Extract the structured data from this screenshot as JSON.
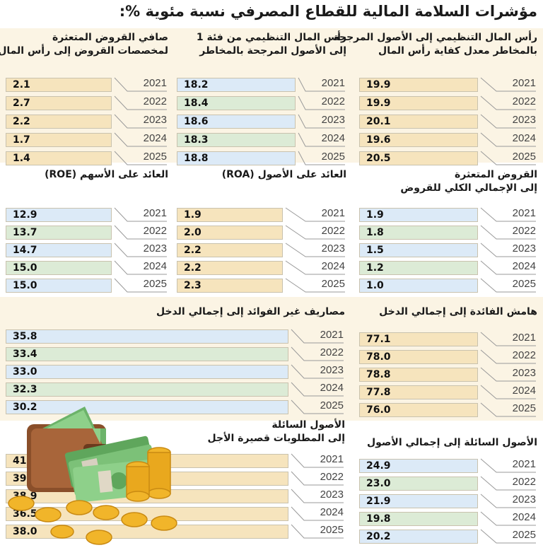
{
  "title": "مؤشرات السلامة المالية للقطاع المصرفي نسبة مئوية %:",
  "colors": {
    "band": "#fbf4e4",
    "blue": "#dceaf7",
    "green": "#dcebd6",
    "beige": "#f6e4bd",
    "connector": "#9a9a9a"
  },
  "icons": [
    "wallet-icon",
    "banknotes-icon",
    "gold-coins-icon"
  ],
  "chart_data": [
    {
      "type": "bar",
      "title": "رأس المال التنظيمي إلى الأصول المرجحة بالمخاطر معدل كفاية رأس المال",
      "title_lines": [
        "رأس المال التنظيمي إلى الأصول المرجحة",
        "بالمخاطر معدل كفاية رأس المال"
      ],
      "categories": [
        "2021",
        "2022",
        "2023",
        "2024",
        "2025"
      ],
      "values": [
        19.9,
        19.9,
        20.1,
        19.6,
        20.5
      ],
      "labels": [
        "19.9",
        "19.9",
        "20.1",
        "19.6",
        "20.5"
      ],
      "colors": [
        "beige",
        "beige",
        "beige",
        "beige",
        "beige"
      ]
    },
    {
      "type": "bar",
      "title": "رأس المال التنظيمي من فئة 1 إلى الأصول المرجحة بالمخاطر",
      "title_lines": [
        "رأس المال التنظيمي من فئة 1",
        "إلى الأصول المرجحة بالمخاطر"
      ],
      "categories": [
        "2021",
        "2022",
        "2023",
        "2024",
        "2025"
      ],
      "values": [
        18.2,
        18.4,
        18.6,
        18.3,
        18.8
      ],
      "labels": [
        "18.2",
        "18.4",
        "18.6",
        "18.3",
        "18.8"
      ],
      "colors": [
        "blue",
        "green",
        "blue",
        "green",
        "blue"
      ]
    },
    {
      "type": "bar",
      "title": "صافي القروض المتعثرة لمخصصات القروض إلى رأس المال",
      "title_lines": [
        "صافي القروض المتعثرة",
        "لمخصصات القروض إلى رأس المال"
      ],
      "categories": [
        "2021",
        "2022",
        "2023",
        "2024",
        "2025"
      ],
      "values": [
        2.1,
        2.7,
        2.2,
        1.7,
        1.4
      ],
      "labels": [
        "2.1",
        "2.7",
        "2.2",
        "1.7",
        "1.4"
      ],
      "colors": [
        "beige",
        "beige",
        "beige",
        "beige",
        "beige"
      ]
    },
    {
      "type": "bar",
      "title": "القروض المتعثرة إلى الإجمالي الكلي للقروض",
      "title_lines": [
        "القروض المتعثرة",
        "إلى الإجمالي الكلي للقروض"
      ],
      "categories": [
        "2021",
        "2022",
        "2023",
        "2024",
        "2025"
      ],
      "values": [
        1.9,
        1.8,
        1.5,
        1.2,
        1.0
      ],
      "labels": [
        "1.9",
        "1.8",
        "1.5",
        "1.2",
        "1.0"
      ],
      "colors": [
        "blue",
        "green",
        "blue",
        "green",
        "blue"
      ]
    },
    {
      "type": "bar",
      "title": "العائد على الأصول (ROA)",
      "title_lines": [
        "العائد على الأصول (ROA)"
      ],
      "categories": [
        "2021",
        "2022",
        "2023",
        "2024",
        "2025"
      ],
      "values": [
        1.9,
        2.0,
        2.2,
        2.2,
        2.3
      ],
      "labels": [
        "1.9",
        "2.0",
        "2.2",
        "2.2",
        "2.3"
      ],
      "colors": [
        "beige",
        "beige",
        "beige",
        "beige",
        "beige"
      ]
    },
    {
      "type": "bar",
      "title": "العائد على الأسهم (ROE)",
      "title_lines": [
        "العائد على الأسهم (ROE)"
      ],
      "categories": [
        "2021",
        "2022",
        "2023",
        "2024",
        "2025"
      ],
      "values": [
        12.9,
        13.7,
        14.7,
        15.0,
        15.0
      ],
      "labels": [
        "12.9",
        "13.7",
        "14.7",
        "15.0",
        "15.0"
      ],
      "colors": [
        "blue",
        "green",
        "blue",
        "green",
        "blue"
      ]
    },
    {
      "type": "bar",
      "title": "هامش الفائدة إلى إجمالي الدخل",
      "title_lines": [
        "هامش الفائدة إلى إجمالي الدخل"
      ],
      "categories": [
        "2021",
        "2022",
        "2023",
        "2024",
        "2025"
      ],
      "values": [
        77.1,
        78.0,
        78.8,
        77.8,
        76.0
      ],
      "labels": [
        "77.1",
        "78.0",
        "78.8",
        "77.8",
        "76.0"
      ],
      "colors": [
        "beige",
        "beige",
        "beige",
        "beige",
        "beige"
      ]
    },
    {
      "type": "bar",
      "title": "مصاريف غير الفوائد إلى إجمالي الدخل",
      "title_lines": [
        "مصاريف غير الفوائد إلى إجمالي الدخل"
      ],
      "categories": [
        "2021",
        "2022",
        "2023",
        "2024",
        "2025"
      ],
      "values": [
        35.8,
        33.4,
        33.0,
        32.3,
        30.2
      ],
      "labels": [
        "35.8",
        "33.4",
        "33.0",
        "32.3",
        "30.2"
      ],
      "colors": [
        "blue",
        "green",
        "blue",
        "green",
        "blue"
      ]
    },
    {
      "type": "bar",
      "title": "الأصول السائلة إلى إجمالي الأصول",
      "title_lines": [
        "الأصول السائلة إلى إجمالي الأصول"
      ],
      "categories": [
        "2021",
        "2022",
        "2023",
        "2024",
        "2025"
      ],
      "values": [
        24.9,
        23.0,
        21.9,
        19.8,
        20.2
      ],
      "labels": [
        "24.9",
        "23.0",
        "21.9",
        "19.8",
        "20.2"
      ],
      "colors": [
        "blue",
        "green",
        "blue",
        "green",
        "blue"
      ]
    },
    {
      "type": "bar",
      "title": "الأصول السائلة إلى المطلوبات قصيرة الأجل",
      "title_lines": [
        "الأصول السائلة",
        "إلى المطلوبات قصيرة الأجل"
      ],
      "categories": [
        "2021",
        "2022",
        "2023",
        "2024",
        "2025"
      ],
      "values": [
        41.3,
        39.7,
        38.9,
        36.5,
        38.0
      ],
      "labels": [
        "41.3",
        "39.7",
        "38.9",
        "36.5",
        "38.0"
      ],
      "colors": [
        "beige",
        "beige",
        "beige",
        "beige",
        "beige"
      ]
    }
  ]
}
